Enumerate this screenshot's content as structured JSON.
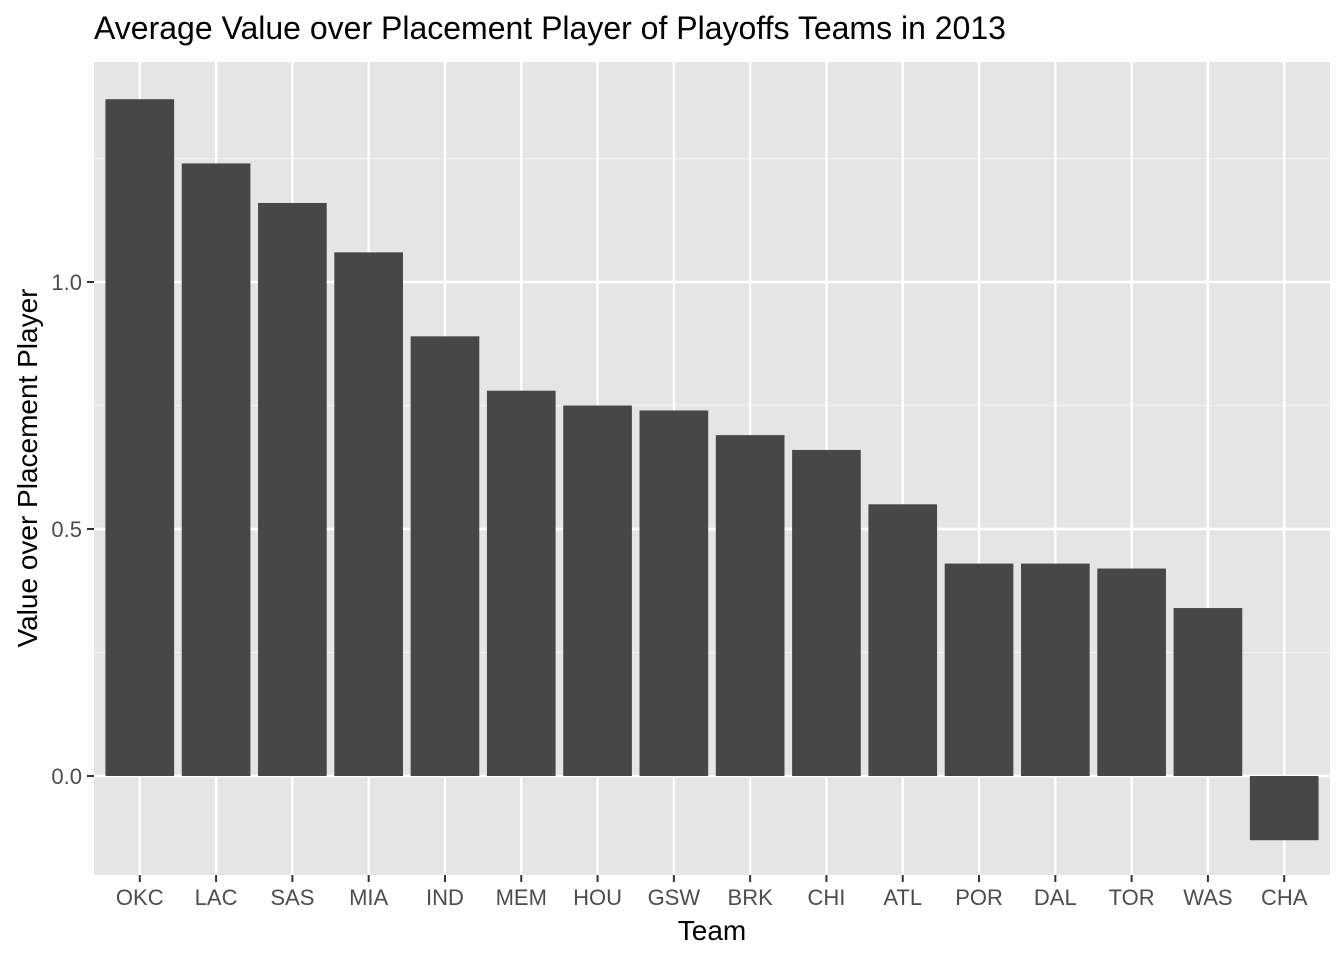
{
  "chart_data": {
    "type": "bar",
    "title": "Average Value over Placement Player of Playoffs Teams in 2013",
    "xlabel": "Team",
    "ylabel": "Value over Placement Player",
    "categories": [
      "OKC",
      "LAC",
      "SAS",
      "MIA",
      "IND",
      "MEM",
      "HOU",
      "GSW",
      "BRK",
      "CHI",
      "ATL",
      "POR",
      "DAL",
      "TOR",
      "WAS",
      "CHA"
    ],
    "values": [
      1.37,
      1.24,
      1.16,
      1.06,
      0.89,
      0.78,
      0.75,
      0.74,
      0.69,
      0.66,
      0.55,
      0.43,
      0.43,
      0.42,
      0.34,
      -0.13
    ],
    "ylim": [
      -0.2,
      1.45
    ],
    "yticks": [
      0.0,
      0.5,
      1.0
    ],
    "ytick_labels": [
      "0.0",
      "0.5",
      "1.0"
    ],
    "grid": true,
    "legend": "none",
    "colors": {
      "bar": "#474747",
      "panel": "#e5e5e5",
      "grid_major": "#ffffff",
      "grid_minor": "#f2f2f2",
      "tick": "#333333"
    }
  }
}
